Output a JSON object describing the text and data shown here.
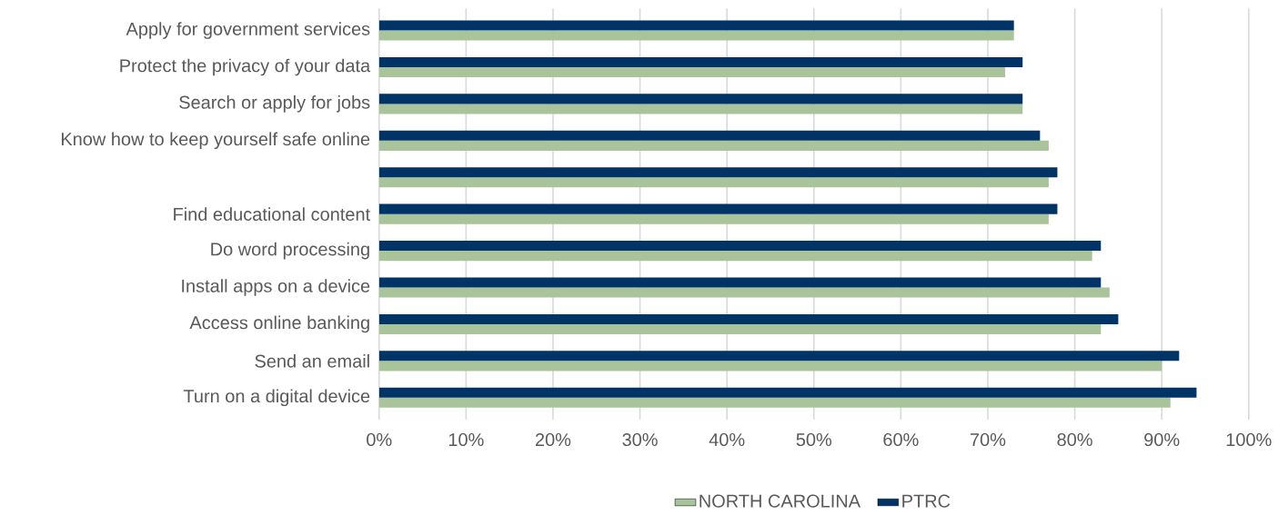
{
  "chart_data": {
    "type": "bar",
    "orientation": "horizontal",
    "categories": [
      "Apply for government services",
      "Protect the privacy of your data",
      "Search or apply for jobs",
      "Know how to keep yourself safe online",
      null,
      "Find educational content",
      "Do word processing",
      "Install apps on a device",
      "Access online banking",
      "Send an email",
      "Turn on a digital device"
    ],
    "series": [
      {
        "name": "NORTH CAROLINA",
        "color": "#a9c49a",
        "values": [
          73,
          72,
          74,
          77,
          77,
          77,
          82,
          84,
          83,
          90,
          91
        ]
      },
      {
        "name": "PTRC",
        "color": "#003366",
        "values": [
          73,
          74,
          74,
          76,
          78,
          78,
          83,
          83,
          85,
          92,
          94
        ]
      }
    ],
    "xlim": [
      0,
      100
    ],
    "xticks": [
      {
        "value": 0,
        "label": "0%"
      },
      {
        "value": 10,
        "label": "10%"
      },
      {
        "value": 20,
        "label": "20%"
      },
      {
        "value": 30,
        "label": "30%"
      },
      {
        "value": 40,
        "label": "40%"
      },
      {
        "value": 50,
        "label": "50%"
      },
      {
        "value": 60,
        "label": "60%"
      },
      {
        "value": 70,
        "label": "70%"
      },
      {
        "value": 80,
        "label": "80%"
      },
      {
        "value": 90,
        "label": "90%"
      },
      {
        "value": 100,
        "label": "100%"
      }
    ],
    "grid": "x",
    "legend": "bottom"
  }
}
